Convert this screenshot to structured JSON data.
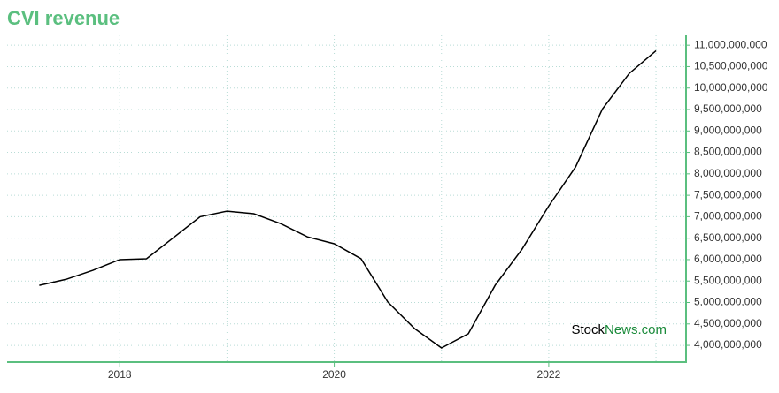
{
  "chart_data": {
    "type": "line",
    "title": "CVI revenue",
    "x": [
      2017.25,
      2017.5,
      2017.75,
      2018,
      2018.25,
      2018.5,
      2018.75,
      2019,
      2019.25,
      2019.5,
      2019.75,
      2020,
      2020.25,
      2020.5,
      2020.75,
      2021,
      2021.25,
      2021.5,
      2021.75,
      2022,
      2022.25,
      2022.5,
      2022.75,
      2023
    ],
    "series": [
      {
        "name": "CVI revenue",
        "color": "#000000",
        "values": [
          5400000000,
          5540000000,
          5750000000,
          6000000000,
          6020000000,
          6510000000,
          7000000000,
          7130000000,
          7070000000,
          6840000000,
          6530000000,
          6370000000,
          6020000000,
          5010000000,
          4390000000,
          3940000000,
          4270000000,
          5400000000,
          6240000000,
          7250000000,
          8160000000,
          9510000000,
          10340000000,
          10870000000
        ]
      }
    ],
    "xlim": [
      2016.95,
      2023.28
    ],
    "xticks": [
      2018,
      2020,
      2022
    ],
    "xminor": [
      2019,
      2021,
      2023
    ],
    "ylim": [
      3610000000,
      11230000000
    ],
    "yticks": [
      {
        "value": 4000000000,
        "label": "4,000,000,000"
      },
      {
        "value": 4500000000,
        "label": "4,500,000,000"
      },
      {
        "value": 5000000000,
        "label": "5,000,000,000"
      },
      {
        "value": 5500000000,
        "label": "5,500,000,000"
      },
      {
        "value": 6000000000,
        "label": "6,000,000,000"
      },
      {
        "value": 6500000000,
        "label": "6,500,000,000"
      },
      {
        "value": 7000000000,
        "label": "7,000,000,000"
      },
      {
        "value": 7500000000,
        "label": "7,500,000,000"
      },
      {
        "value": 8000000000,
        "label": "8,000,000,000"
      },
      {
        "value": 8500000000,
        "label": "8,500,000,000"
      },
      {
        "value": 9000000000,
        "label": "9,000,000,000"
      },
      {
        "value": 9500000000,
        "label": "9,500,000,000"
      },
      {
        "value": 10000000000,
        "label": "10,000,000,000"
      },
      {
        "value": 10500000000,
        "label": "10,500,000,000"
      },
      {
        "value": 11000000000,
        "label": "11,000,000,000"
      }
    ],
    "grid": true,
    "axis_color": "#5bbf7f",
    "watermark": [
      "Stock",
      "News.com"
    ]
  }
}
